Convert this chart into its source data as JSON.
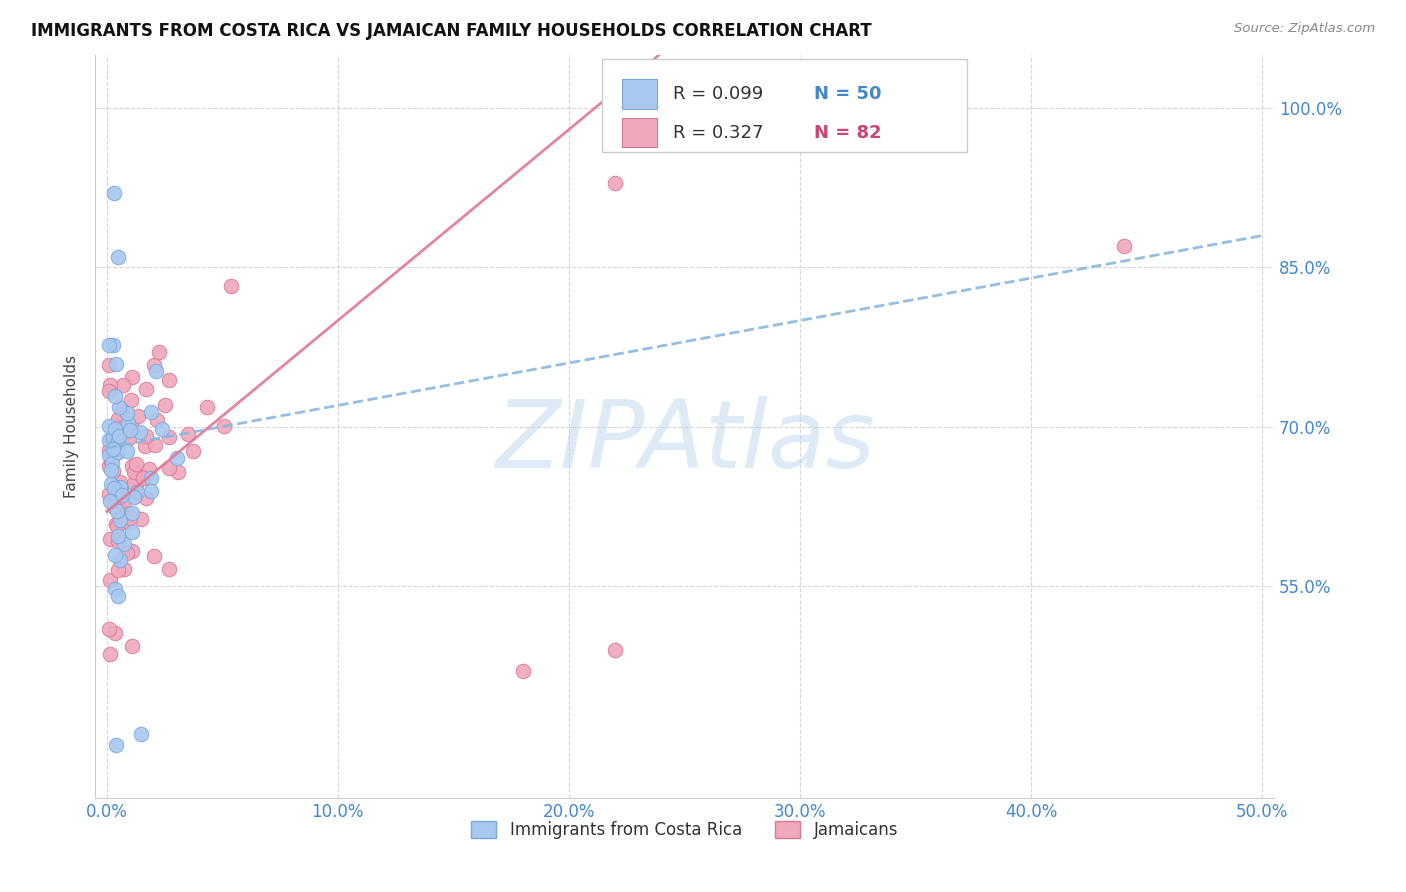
{
  "title": "IMMIGRANTS FROM COSTA RICA VS JAMAICAN FAMILY HOUSEHOLDS CORRELATION CHART",
  "source": "Source: ZipAtlas.com",
  "ylabel": "Family Households",
  "right_yticks": [
    "100.0%",
    "85.0%",
    "70.0%",
    "55.0%"
  ],
  "right_ytick_vals": [
    1.0,
    0.85,
    0.7,
    0.55
  ],
  "xtick_labels": [
    "0.0%",
    "10.0%",
    "20.0%",
    "30.0%",
    "40.0%",
    "50.0%"
  ],
  "xtick_vals": [
    0.0,
    0.1,
    0.2,
    0.3,
    0.4,
    0.5
  ],
  "legend_r1": "R = 0.099",
  "legend_n1": "N = 50",
  "legend_r2": "R = 0.327",
  "legend_n2": "N = 82",
  "color_blue": "#a8c8f0",
  "color_pink": "#f0a8bc",
  "color_blue_edge": "#78a8d8",
  "color_pink_edge": "#d87898",
  "color_blue_text": "#4488cc",
  "color_pink_text": "#cc4477",
  "color_line_blue": "#88b8e0",
  "color_line_pink": "#e07898",
  "background": "#ffffff",
  "grid_color": "#cccccc",
  "watermark": "ZIPAtlas",
  "watermark_color": "#c8dff0",
  "legend1_label": "Immigrants from Costa Rica",
  "legend2_label": "Jamaicans",
  "xlim": [
    -0.005,
    0.505
  ],
  "ylim": [
    0.35,
    1.05
  ]
}
